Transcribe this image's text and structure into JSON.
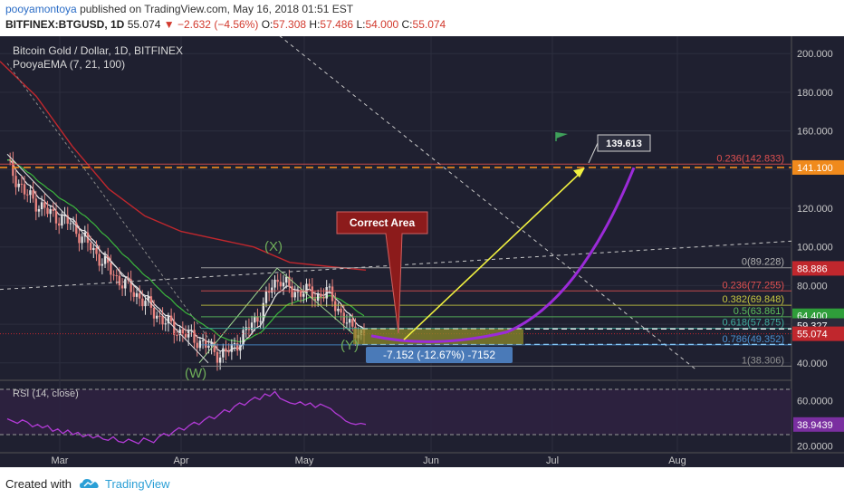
{
  "header": {
    "author": "pooyamontoya",
    "published": "published on TradingView.com, May 16, 2018 01:51 EST",
    "symbol": "BITFINEX:BTGUSD, 1D",
    "last": "55.074",
    "change": "▼ −2.632 (−4.56%)",
    "open_label": "O:",
    "open": "57.308",
    "high_label": "H:",
    "high": "57.486",
    "low_label": "L:",
    "low": "54.000",
    "close_label": "C:",
    "close": "55.074"
  },
  "footer": {
    "created_with": "Created with",
    "brand": "TradingView"
  },
  "colors": {
    "background": "#1f2030",
    "grid": "#2c2e3e",
    "candle_up": "#e3e3e3",
    "candle_down": "#e8827e",
    "ema7": "#ffffff",
    "ema21": "#3ec63e",
    "ema100": "#c0272d",
    "fib": "#bfc340",
    "target_line": "#f08a1c",
    "projection": "#9b2bd8",
    "arrow": "#f0f040",
    "rsi": "#b23bd6",
    "zone": "#8c8a2a"
  },
  "chart_data": [
    {
      "type": "candlestick",
      "title": "Bitcoin Gold / Dollar, 1D, BITFINEX",
      "indicator": "PooyaEMA (7, 21, 100)",
      "x_tick_labels": [
        "Mar",
        "Apr",
        "May",
        "Jun",
        "Jul",
        "Aug"
      ],
      "y_tick_labels": [
        "40.000",
        "60.000",
        "80.000",
        "100.000",
        "120.000",
        "140.000",
        "160.000",
        "180.000",
        "200.000"
      ],
      "ylim": [
        31,
        209
      ],
      "price_labels": [
        {
          "value": 141.1,
          "text": "141.100",
          "color": "#f08a1c"
        },
        {
          "value": 88.886,
          "text": "88.886",
          "color": "#c0272d"
        },
        {
          "value": 64.4,
          "text": "64.400",
          "color": "#2f9e3a"
        },
        {
          "value": 59.327,
          "text": "59.327",
          "color": "#2a2b3a"
        },
        {
          "value": 55.074,
          "text": "55.074",
          "color": "#c0272d"
        }
      ],
      "fibonacci": [
        {
          "level": 0.236,
          "value": 142.833,
          "text": "0.236(142.833)",
          "color": "#e05050"
        },
        {
          "level": 0,
          "value": 89.228,
          "text": "0(89.228)",
          "color": "#b0b0b0"
        },
        {
          "level": 0.236,
          "value": 77.255,
          "text": "0.236(77.255)",
          "color": "#e05050"
        },
        {
          "level": 0.382,
          "value": 69.848,
          "text": "0.382(69.848)",
          "color": "#c8c840"
        },
        {
          "level": 0.5,
          "value": 63.861,
          "text": "0.5(63.861)",
          "color": "#5cc05c"
        },
        {
          "level": 0.618,
          "value": 57.875,
          "text": "0.618(57.875)",
          "color": "#40b0a0"
        },
        {
          "level": 0.786,
          "value": 49.352,
          "text": "0.786(49.352)",
          "color": "#4a90d0"
        },
        {
          "level": 1,
          "value": 38.306,
          "text": "1(38.306)",
          "color": "#909090"
        }
      ],
      "wave_labels": [
        "(W)",
        "(X)",
        "(Y)"
      ],
      "annotations": {
        "callout": "Correct Area",
        "target": "139.613",
        "measure": "-7.152 (-12.67%) -7152"
      }
    },
    {
      "type": "line",
      "title": "RSI (14, close)",
      "y_tick_labels": [
        "20.0000",
        "40.0000",
        "60.0000"
      ],
      "ylim": [
        14,
        78
      ],
      "last_value": "38.9439",
      "bands": [
        30,
        70
      ],
      "values": [
        44,
        42,
        40,
        43,
        41,
        37,
        39,
        36,
        38,
        33,
        35,
        31,
        34,
        30,
        32,
        28,
        30,
        27,
        29,
        26,
        25,
        28,
        24,
        23,
        26,
        24,
        22,
        27,
        25,
        23,
        28,
        31,
        29,
        33,
        36,
        34,
        38,
        41,
        39,
        43,
        46,
        44,
        48,
        52,
        50,
        55,
        58,
        56,
        60,
        63,
        61,
        66,
        64,
        68,
        62,
        60,
        58,
        57,
        59,
        56,
        58,
        54,
        57,
        55,
        53,
        49,
        46,
        42,
        40,
        39,
        40,
        39
      ]
    }
  ]
}
